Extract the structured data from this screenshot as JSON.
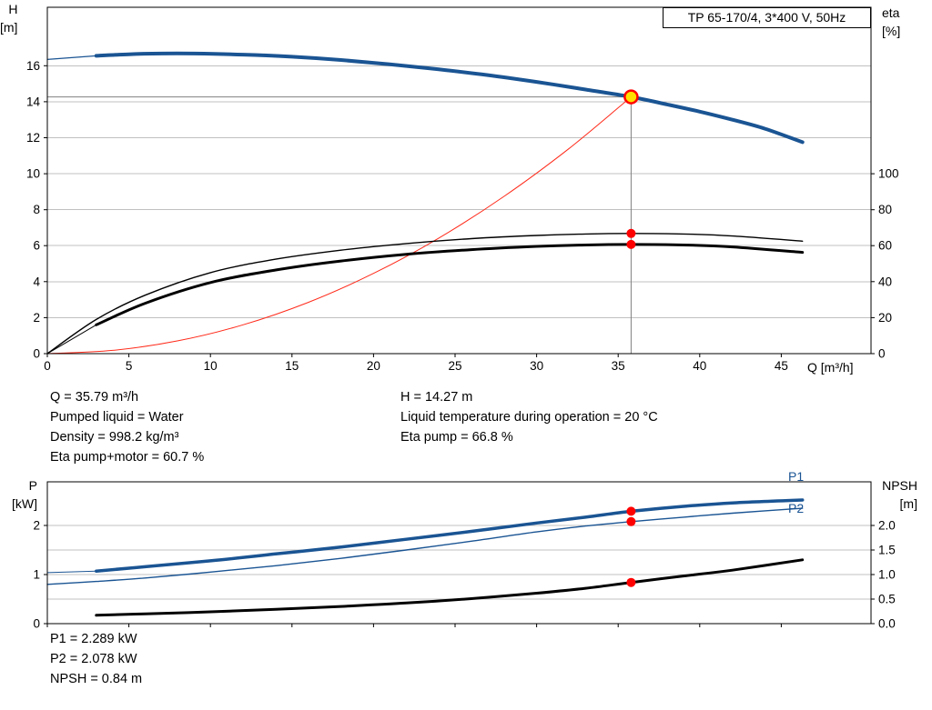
{
  "title": "TP 65-170/4, 3*400 V, 50Hz",
  "colors": {
    "curve_blue": "#1a5493",
    "curve_black": "#000000",
    "system_red": "#ff2a1a",
    "dot_red": "#ff0000",
    "op_yellow": "#ffdf00",
    "grid": "#c0c0c0",
    "crosshair": "#808080",
    "label_blue": "#1a5493"
  },
  "top_chart": {
    "ylabel_left_1": "H",
    "ylabel_left_2": "[m]",
    "ylabel_right_1": "eta",
    "ylabel_right_2": "[%]",
    "xlabel": "Q [m³/h]"
  },
  "bottom_chart": {
    "ylabel_left_1": "P",
    "ylabel_left_2": "[kW]",
    "ylabel_right_1": "NPSH",
    "ylabel_right_2": "[m]",
    "p1_label": "P1",
    "p2_label": "P2"
  },
  "info_top_left": [
    "Q = 35.79 m³/h",
    "Pumped liquid = Water",
    "Density = 998.2 kg/m³",
    "Eta pump+motor = 60.7 %"
  ],
  "info_top_right": [
    "H = 14.27 m",
    "Liquid temperature during operation = 20 °C",
    "Eta pump = 66.8 %"
  ],
  "info_bottom": [
    "P1 = 2.289 kW",
    "P2 = 2.078 kW",
    "NPSH = 0.84 m"
  ],
  "chart_data": [
    {
      "id": "hq",
      "type": "line",
      "title": "TP 65-170/4, 3*400 V, 50Hz",
      "xlabel": "Q [m³/h]",
      "ylabel_left": "H [m]",
      "ylabel_right": "eta [%]",
      "xlim": [
        0,
        50.5
      ],
      "ylim_left": [
        0,
        19.25
      ],
      "right_factor": 0.1,
      "grid": true,
      "x_ticks": [
        {
          "v": 0,
          "t": "0"
        },
        {
          "v": 5,
          "t": "5"
        },
        {
          "v": 10,
          "t": "10"
        },
        {
          "v": 15,
          "t": "15"
        },
        {
          "v": 20,
          "t": "20"
        },
        {
          "v": 25,
          "t": "25"
        },
        {
          "v": 30,
          "t": "30"
        },
        {
          "v": 35,
          "t": "35"
        },
        {
          "v": 40,
          "t": "40"
        },
        {
          "v": 45,
          "t": "45"
        }
      ],
      "y_ticks_left": [
        {
          "v": 0,
          "t": "0"
        },
        {
          "v": 2,
          "t": "2"
        },
        {
          "v": 4,
          "t": "4"
        },
        {
          "v": 6,
          "t": "6"
        },
        {
          "v": 8,
          "t": "8"
        },
        {
          "v": 10,
          "t": "10"
        },
        {
          "v": 12,
          "t": "12"
        },
        {
          "v": 14,
          "t": "14"
        },
        {
          "v": 16,
          "t": "16"
        }
      ],
      "y_ticks_right": [
        {
          "v": 0,
          "t": "0"
        },
        {
          "v": 20,
          "t": "20"
        },
        {
          "v": 40,
          "t": "40"
        },
        {
          "v": 60,
          "t": "60"
        },
        {
          "v": 80,
          "t": "80"
        },
        {
          "v": 100,
          "t": "100"
        }
      ],
      "gridlines": [
        2,
        4,
        6,
        8,
        10,
        12,
        14,
        16
      ],
      "crosshair": {
        "x": 35.79,
        "y": 14.27
      },
      "series": [
        {
          "name": "head-curve-lead",
          "axis": "left",
          "width": 1.2,
          "color": "#1a5493",
          "points": [
            [
              0,
              16.35
            ],
            [
              3,
              16.55
            ]
          ]
        },
        {
          "name": "head-curve",
          "axis": "left",
          "width": 4,
          "color": "#1a5493",
          "points": [
            [
              3,
              16.55
            ],
            [
              5,
              16.64
            ],
            [
              7,
              16.68
            ],
            [
              9,
              16.68
            ],
            [
              12,
              16.62
            ],
            [
              15,
              16.5
            ],
            [
              18,
              16.32
            ],
            [
              21,
              16.08
            ],
            [
              24,
              15.8
            ],
            [
              27,
              15.48
            ],
            [
              30,
              15.1
            ],
            [
              33,
              14.68
            ],
            [
              35.79,
              14.27
            ],
            [
              38,
              13.85
            ],
            [
              40,
              13.45
            ],
            [
              42,
              13.0
            ],
            [
              44,
              12.5
            ],
            [
              46.3,
              11.75
            ]
          ]
        },
        {
          "name": "system-curve",
          "axis": "left",
          "width": 1,
          "color": "#ff2a1a",
          "points": [
            [
              0,
              0
            ],
            [
              4,
              0.18
            ],
            [
              8,
              0.71
            ],
            [
              12,
              1.6
            ],
            [
              16,
              2.85
            ],
            [
              20,
              4.46
            ],
            [
              24,
              6.42
            ],
            [
              28,
              8.74
            ],
            [
              32,
              11.41
            ],
            [
              35.79,
              14.27
            ]
          ]
        },
        {
          "name": "eta-pump-curve",
          "axis": "right",
          "width": 1.4,
          "color": "#000000",
          "points": [
            [
              0,
              0
            ],
            [
              3,
              19
            ],
            [
              6,
              32.5
            ],
            [
              10,
              45
            ],
            [
              14,
              52.5
            ],
            [
              18,
              57.5
            ],
            [
              22,
              61.2
            ],
            [
              26,
              63.9
            ],
            [
              30,
              65.7
            ],
            [
              33,
              66.5
            ],
            [
              35.79,
              66.8
            ],
            [
              39,
              66.5
            ],
            [
              42,
              65.4
            ],
            [
              46.3,
              62.5
            ]
          ]
        },
        {
          "name": "eta-pump-motor-lead",
          "axis": "right",
          "width": 1,
          "color": "#000000",
          "points": [
            [
              0,
              0
            ],
            [
              3,
              16
            ]
          ]
        },
        {
          "name": "eta-pump-motor-curve",
          "axis": "right",
          "width": 3,
          "color": "#000000",
          "points": [
            [
              3,
              16
            ],
            [
              6,
              28
            ],
            [
              10,
              39.5
            ],
            [
              14,
              46.5
            ],
            [
              18,
              51.5
            ],
            [
              22,
              55.2
            ],
            [
              26,
              57.8
            ],
            [
              30,
              59.6
            ],
            [
              33,
              60.4
            ],
            [
              35.79,
              60.7
            ],
            [
              39,
              60.4
            ],
            [
              42,
              59.3
            ],
            [
              46.3,
              56.3
            ]
          ]
        }
      ],
      "markers": [
        {
          "name": "eta-pump-duty-dot",
          "axis": "right",
          "x": 35.79,
          "v": 66.8,
          "r": 5,
          "fill": "#ff0000"
        },
        {
          "name": "eta-pump-motor-duty-dot",
          "axis": "right",
          "x": 35.79,
          "v": 60.7,
          "r": 5,
          "fill": "#ff0000"
        },
        {
          "name": "operating-point",
          "axis": "left",
          "x": 35.79,
          "v": 14.27,
          "r": 7,
          "fill": "#ffdf00",
          "stroke": "#ff0000",
          "sw": 2.5
        }
      ]
    },
    {
      "id": "pn",
      "type": "line",
      "title": "",
      "xlabel": "",
      "ylabel_left": "P [kW]",
      "ylabel_right": "NPSH [m]",
      "xlim": [
        0,
        50.5
      ],
      "ylim_left": [
        0,
        2.89
      ],
      "right_factor": 1,
      "grid": true,
      "x_ticks": [
        {
          "v": 0,
          "t": ""
        },
        {
          "v": 5,
          "t": ""
        },
        {
          "v": 10,
          "t": ""
        },
        {
          "v": 15,
          "t": ""
        },
        {
          "v": 20,
          "t": ""
        },
        {
          "v": 25,
          "t": ""
        },
        {
          "v": 30,
          "t": ""
        },
        {
          "v": 35,
          "t": ""
        },
        {
          "v": 40,
          "t": ""
        },
        {
          "v": 45,
          "t": ""
        }
      ],
      "y_ticks_left": [
        {
          "v": 0,
          "t": "0"
        },
        {
          "v": 1,
          "t": "1"
        },
        {
          "v": 2,
          "t": "2"
        }
      ],
      "y_ticks_right": [
        {
          "v": 0,
          "t": "0.0"
        },
        {
          "v": 0.5,
          "t": "0.5"
        },
        {
          "v": 1,
          "t": "1.0"
        },
        {
          "v": 1.5,
          "t": "1.5"
        },
        {
          "v": 2,
          "t": "2.0"
        }
      ],
      "gridlines": [
        0.5,
        1,
        1.5,
        2
      ],
      "crosshair": null,
      "series": [
        {
          "name": "p1-curve-lead",
          "axis": "left",
          "width": 1,
          "color": "#1a5493",
          "points": [
            [
              0,
              1.04
            ],
            [
              3,
              1.07
            ]
          ]
        },
        {
          "name": "p1-curve",
          "axis": "left",
          "width": 3.5,
          "color": "#1a5493",
          "points": [
            [
              3,
              1.07
            ],
            [
              6,
              1.16
            ],
            [
              10,
              1.28
            ],
            [
              14,
              1.42
            ],
            [
              18,
              1.56
            ],
            [
              22,
              1.72
            ],
            [
              26,
              1.88
            ],
            [
              30,
              2.05
            ],
            [
              33,
              2.17
            ],
            [
              35.79,
              2.289
            ],
            [
              39,
              2.39
            ],
            [
              42,
              2.46
            ],
            [
              46.3,
              2.52
            ]
          ]
        },
        {
          "name": "p2-curve",
          "axis": "left",
          "width": 1.4,
          "color": "#1a5493",
          "points": [
            [
              0,
              0.8
            ],
            [
              3,
              0.86
            ],
            [
              6,
              0.93
            ],
            [
              10,
              1.05
            ],
            [
              14,
              1.18
            ],
            [
              18,
              1.33
            ],
            [
              22,
              1.5
            ],
            [
              26,
              1.68
            ],
            [
              30,
              1.87
            ],
            [
              33,
              1.99
            ],
            [
              35.79,
              2.078
            ],
            [
              39,
              2.17
            ],
            [
              42,
              2.25
            ],
            [
              46.3,
              2.35
            ]
          ]
        },
        {
          "name": "npsh-curve",
          "axis": "right",
          "width": 3,
          "color": "#000000",
          "points": [
            [
              3,
              0.17
            ],
            [
              6,
              0.2
            ],
            [
              10,
              0.24
            ],
            [
              14,
              0.29
            ],
            [
              18,
              0.35
            ],
            [
              22,
              0.42
            ],
            [
              26,
              0.51
            ],
            [
              30,
              0.62
            ],
            [
              33,
              0.72
            ],
            [
              35.79,
              0.84
            ],
            [
              39,
              0.97
            ],
            [
              42,
              1.09
            ],
            [
              46.3,
              1.3
            ]
          ]
        }
      ],
      "markers": [
        {
          "name": "p1-duty-dot",
          "axis": "left",
          "x": 35.79,
          "v": 2.289,
          "r": 5,
          "fill": "#ff0000"
        },
        {
          "name": "p2-duty-dot",
          "axis": "left",
          "x": 35.79,
          "v": 2.078,
          "r": 5,
          "fill": "#ff0000"
        },
        {
          "name": "npsh-duty-dot",
          "axis": "right",
          "x": 35.79,
          "v": 0.84,
          "r": 5,
          "fill": "#ff0000"
        }
      ]
    }
  ]
}
